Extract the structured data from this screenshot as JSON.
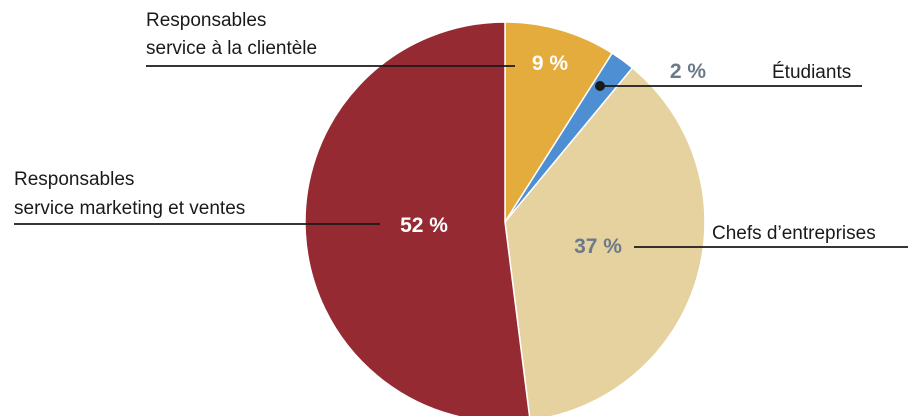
{
  "chart_data": {
    "type": "pie",
    "slices": [
      {
        "key": "customer_service",
        "value": 9,
        "display": "9 %",
        "label_lines": [
          "Responsables",
          "service à la clientèle"
        ],
        "color": "#e4ab3d",
        "value_color": "#ffffff"
      },
      {
        "key": "students",
        "value": 2,
        "display": "2 %",
        "label_lines": [
          "Étudiants"
        ],
        "color": "#4e8fd4",
        "value_color": "#6b7a89"
      },
      {
        "key": "executives",
        "value": 37,
        "display": "37 %",
        "label_lines": [
          "Chefs d’entreprises"
        ],
        "color": "#e6d29f",
        "value_color": "#6b7a89"
      },
      {
        "key": "marketing_sales",
        "value": 52,
        "display": "52 %",
        "label_lines": [
          "Responsables",
          "service marketing et ventes"
        ],
        "color": "#962a33",
        "value_color": "#ffffff"
      }
    ],
    "start_angle_deg": 0,
    "direction": "clockwise"
  }
}
